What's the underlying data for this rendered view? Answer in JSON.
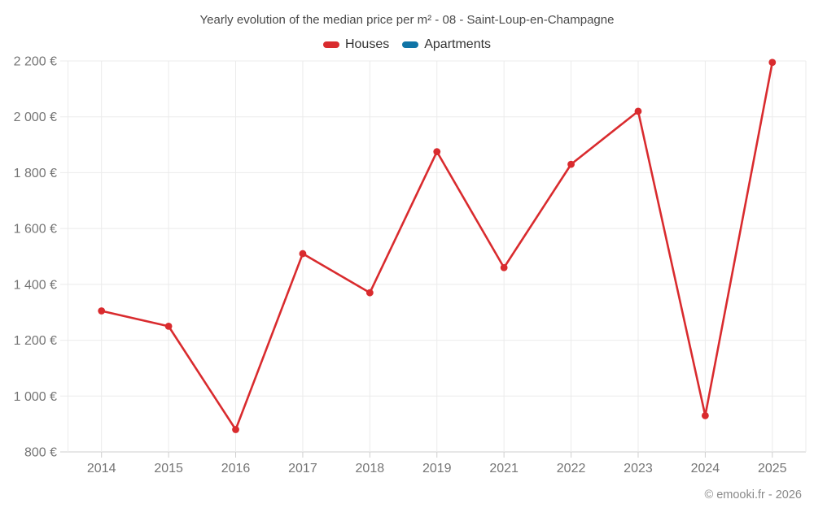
{
  "chart_data": {
    "type": "line",
    "title": "Yearly evolution of the median price per m² - 08 - Saint-Loup-en-Champagne",
    "categories": [
      "2014",
      "2015",
      "2016",
      "2017",
      "2018",
      "2019",
      "2021",
      "2022",
      "2023",
      "2024",
      "2025"
    ],
    "series": [
      {
        "name": "Houses",
        "color": "#d92b2e",
        "values": [
          1305,
          1250,
          880,
          1510,
          1370,
          1875,
          1460,
          1830,
          2020,
          930,
          2195
        ]
      },
      {
        "name": "Apartments",
        "color": "#1074a6",
        "values": []
      }
    ],
    "ylim": [
      800,
      2200
    ],
    "ytick_step": 200,
    "ytick_labels": [
      "800 €",
      "1 000 €",
      "1 200 €",
      "1 400 €",
      "1 600 €",
      "1 800 €",
      "2 000 €",
      "2 200 €"
    ],
    "currency_suffix": " €",
    "grid": true,
    "legend_position": "top",
    "colors": {
      "houses": "#d92b2e",
      "apartments": "#1074a6",
      "gridline": "#ebebeb",
      "axis_line": "#cfcfcf",
      "axis_text": "#757575"
    }
  },
  "footer": {
    "copyright": "© emooki.fr - 2026"
  }
}
